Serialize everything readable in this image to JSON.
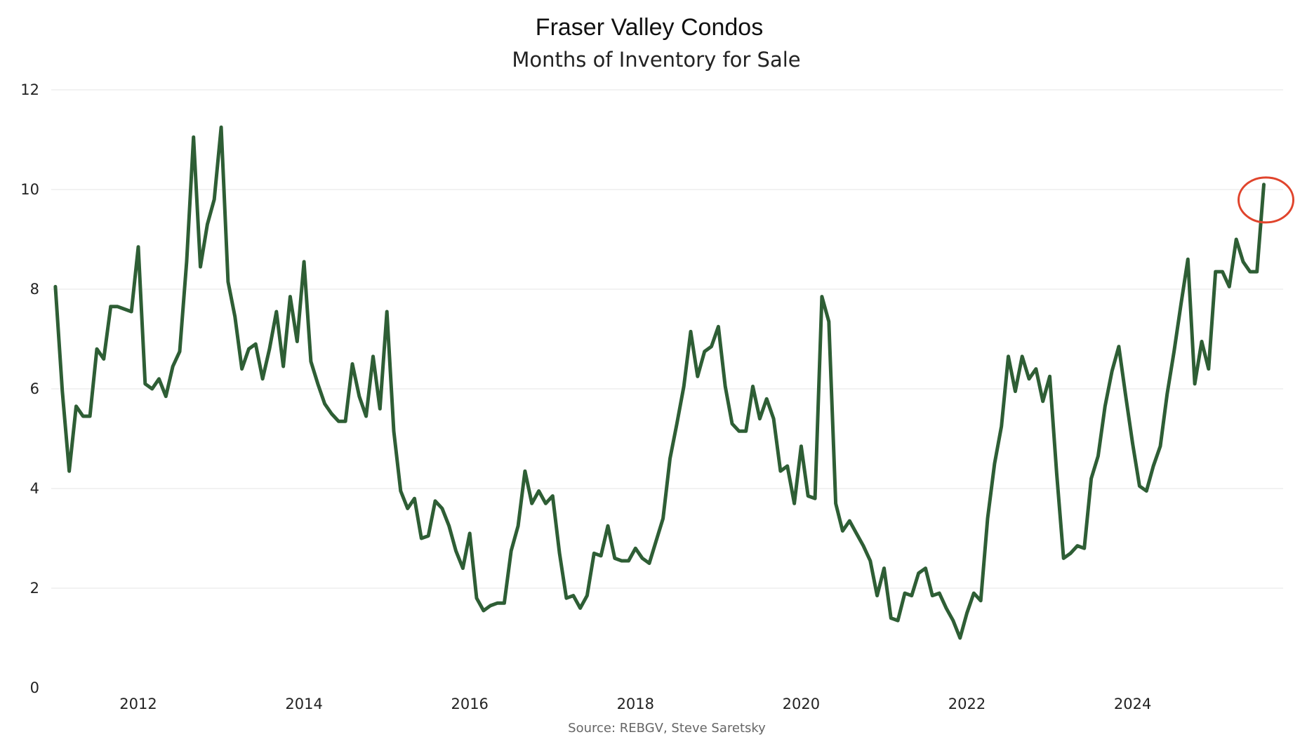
{
  "chart_data": {
    "type": "line",
    "title": "Fraser Valley Condos",
    "subtitle": "Months of Inventory for Sale",
    "source": "Source: REBGV, Steve Saretsky",
    "xlabel": "",
    "ylabel": "",
    "x_start": "2011-01",
    "x_range": [
      "2011-01",
      "2025-10"
    ],
    "xticks": [
      "2012",
      "2014",
      "2016",
      "2018",
      "2020",
      "2022",
      "2024"
    ],
    "ylim": [
      0,
      12
    ],
    "yticks": [
      "0",
      "2",
      "4",
      "6",
      "8",
      "10",
      "12"
    ],
    "grid": true,
    "line_color": "#2e5e35",
    "highlight_color": "#e0442c",
    "highlight": {
      "x": "2025-08",
      "y": 10.1
    },
    "series": [
      {
        "x": [
          "2011-01",
          "2011-02",
          "2011-03",
          "2011-04",
          "2011-05",
          "2011-06",
          "2011-07",
          "2011-08",
          "2011-09",
          "2011-10",
          "2011-11",
          "2011-12",
          "2012-01",
          "2012-02",
          "2012-03",
          "2012-04",
          "2012-05",
          "2012-06",
          "2012-07",
          "2012-08",
          "2012-09",
          "2012-10",
          "2012-11",
          "2012-12",
          "2013-01",
          "2013-02",
          "2013-03",
          "2013-04",
          "2013-05",
          "2013-06",
          "2013-07",
          "2013-08",
          "2013-09",
          "2013-10",
          "2013-11",
          "2013-12",
          "2014-01",
          "2014-02",
          "2014-03",
          "2014-04",
          "2014-05",
          "2014-06",
          "2014-07",
          "2014-08",
          "2014-09",
          "2014-10",
          "2014-11",
          "2014-12",
          "2015-01",
          "2015-02",
          "2015-03",
          "2015-04",
          "2015-05",
          "2015-06",
          "2015-07",
          "2015-08",
          "2015-09",
          "2015-10",
          "2015-11",
          "2015-12",
          "2016-01",
          "2016-02",
          "2016-03",
          "2016-04",
          "2016-05",
          "2016-06",
          "2016-07",
          "2016-08",
          "2016-09",
          "2016-10",
          "2016-11",
          "2016-12",
          "2017-01",
          "2017-02",
          "2017-03",
          "2017-04",
          "2017-05",
          "2017-06",
          "2017-07",
          "2017-08",
          "2017-09",
          "2017-10",
          "2017-11",
          "2017-12",
          "2018-01",
          "2018-02",
          "2018-03",
          "2018-04",
          "2018-05",
          "2018-06",
          "2018-07",
          "2018-08",
          "2018-09",
          "2018-10",
          "2018-11",
          "2018-12",
          "2019-01",
          "2019-02",
          "2019-03",
          "2019-04",
          "2019-05",
          "2019-06",
          "2019-07",
          "2019-08",
          "2019-09",
          "2019-10",
          "2019-11",
          "2019-12",
          "2020-01",
          "2020-02",
          "2020-03",
          "2020-04",
          "2020-05",
          "2020-06",
          "2020-07",
          "2020-08",
          "2020-09",
          "2020-10",
          "2020-11",
          "2020-12",
          "2021-01",
          "2021-02",
          "2021-03",
          "2021-04",
          "2021-05",
          "2021-06",
          "2021-07",
          "2021-08",
          "2021-09",
          "2021-10",
          "2021-11",
          "2021-12",
          "2022-01",
          "2022-02",
          "2022-03",
          "2022-04",
          "2022-05",
          "2022-06",
          "2022-07",
          "2022-08",
          "2022-09",
          "2022-10",
          "2022-11",
          "2022-12",
          "2023-01",
          "2023-02",
          "2023-03",
          "2023-04",
          "2023-05",
          "2023-06",
          "2023-07",
          "2023-08",
          "2023-09",
          "2023-10",
          "2023-11",
          "2023-12",
          "2024-01",
          "2024-02",
          "2024-03",
          "2024-04",
          "2024-05",
          "2024-06",
          "2024-07",
          "2024-08",
          "2024-09",
          "2024-10",
          "2024-11",
          "2024-12",
          "2025-01",
          "2025-02",
          "2025-03",
          "2025-04",
          "2025-05",
          "2025-06",
          "2025-07",
          "2025-08"
        ],
        "values": [
          8.05,
          5.95,
          4.35,
          5.65,
          5.45,
          5.45,
          6.8,
          6.6,
          7.65,
          7.65,
          7.6,
          7.55,
          8.85,
          6.1,
          6.0,
          6.2,
          5.85,
          6.45,
          6.75,
          8.55,
          11.05,
          8.45,
          9.3,
          9.8,
          11.25,
          8.15,
          7.45,
          6.4,
          6.8,
          6.9,
          6.2,
          6.8,
          7.55,
          6.45,
          7.85,
          6.95,
          8.55,
          6.55,
          6.1,
          5.7,
          5.5,
          5.35,
          5.35,
          6.5,
          5.85,
          5.45,
          6.65,
          5.6,
          7.55,
          5.15,
          3.95,
          3.6,
          3.8,
          3.0,
          3.05,
          3.75,
          3.6,
          3.25,
          2.75,
          2.4,
          3.1,
          1.8,
          1.55,
          1.65,
          1.7,
          1.7,
          2.75,
          3.25,
          4.35,
          3.7,
          3.95,
          3.7,
          3.85,
          2.7,
          1.8,
          1.85,
          1.6,
          1.85,
          2.7,
          2.65,
          3.25,
          2.6,
          2.55,
          2.55,
          2.8,
          2.6,
          2.5,
          2.95,
          3.4,
          4.6,
          5.3,
          6.05,
          7.15,
          6.25,
          6.75,
          6.85,
          7.25,
          6.05,
          5.3,
          5.15,
          5.15,
          6.05,
          5.4,
          5.8,
          5.4,
          4.35,
          4.45,
          3.7,
          4.85,
          3.85,
          3.8,
          7.85,
          7.35,
          3.7,
          3.15,
          3.35,
          3.1,
          2.85,
          2.55,
          1.85,
          2.4,
          1.4,
          1.35,
          1.9,
          1.85,
          2.3,
          2.4,
          1.85,
          1.9,
          1.6,
          1.35,
          1.0,
          1.5,
          1.9,
          1.75,
          3.4,
          4.5,
          5.25,
          6.65,
          5.95,
          6.65,
          6.2,
          6.4,
          5.75,
          6.25,
          4.3,
          2.6,
          2.7,
          2.85,
          2.8,
          4.2,
          4.65,
          5.65,
          6.35,
          6.85,
          5.85,
          4.9,
          4.05,
          3.95,
          4.45,
          4.85,
          5.9,
          6.75,
          7.7,
          8.6,
          6.1,
          6.95,
          6.4,
          8.35,
          8.35,
          8.05,
          9.0,
          8.55,
          8.35,
          8.35,
          10.1
        ]
      }
    ]
  }
}
